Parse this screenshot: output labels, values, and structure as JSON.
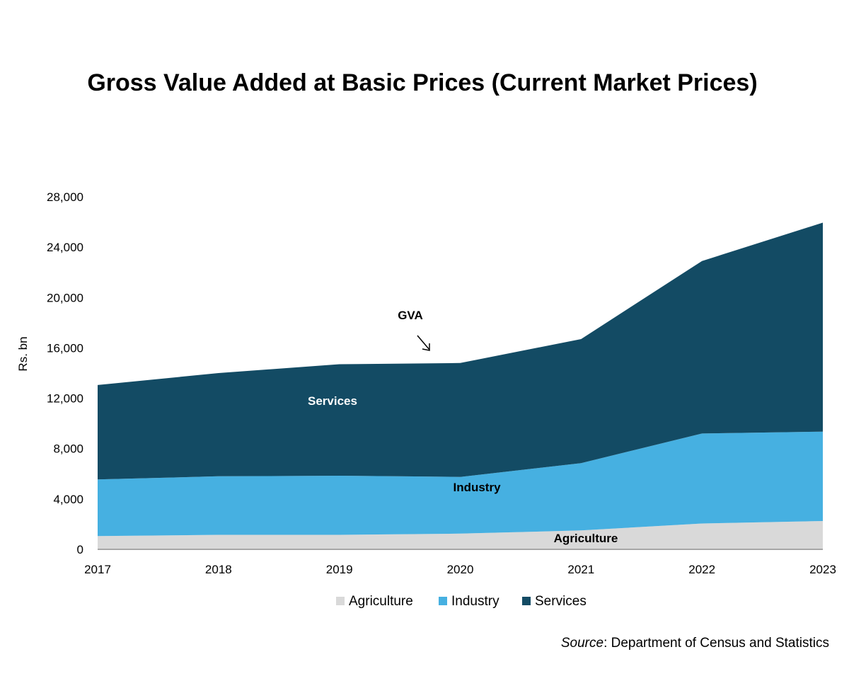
{
  "chart_data": {
    "type": "area",
    "title": "Gross Value Added at Basic Prices (Current Market Prices)",
    "ylabel": "Rs. bn",
    "xlabel": "",
    "ylim": [
      0,
      28000
    ],
    "y_ticks": [
      0,
      4000,
      8000,
      12000,
      16000,
      20000,
      24000,
      28000
    ],
    "y_tick_labels": [
      "0",
      "4,000",
      "8,000",
      "12,000",
      "16,000",
      "20,000",
      "24,000",
      "28,000"
    ],
    "categories": [
      "2017",
      "2018",
      "2019",
      "2020",
      "2021",
      "2022",
      "2023"
    ],
    "stacked": true,
    "series": [
      {
        "name": "Agriculture",
        "color": "#d9d9d9",
        "values": [
          1050,
          1150,
          1150,
          1250,
          1500,
          2050,
          2250
        ]
      },
      {
        "name": "Industry",
        "color": "#46b0e1",
        "values": [
          4500,
          4650,
          4700,
          4500,
          5350,
          7150,
          7100
        ]
      },
      {
        "name": "Services",
        "color": "#134b64",
        "values": [
          7500,
          8200,
          8850,
          9050,
          9850,
          13700,
          16600
        ]
      }
    ],
    "area_labels": {
      "services": "Services",
      "industry": "Industry",
      "agriculture": "Agriculture",
      "gva": "GVA"
    },
    "legend_placement": "bottom",
    "grid": false
  },
  "source": {
    "prefix": "Source",
    "separator": ": ",
    "text": "Department of Census and Statistics"
  }
}
